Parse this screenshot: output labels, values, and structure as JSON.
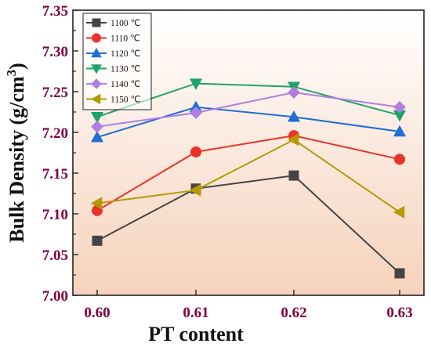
{
  "chart_data": {
    "type": "line",
    "title": "",
    "xlabel": "PT content",
    "ylabel": "Bulk Density (g/cm",
    "ylabel_sup": "3",
    "ylabel_close": ")",
    "categories": [
      "0.60",
      "0.61",
      "0.62",
      "0.63"
    ],
    "x": [
      0.6,
      0.61,
      0.62,
      0.63
    ],
    "ylim": [
      7.0,
      7.35
    ],
    "yticks": [
      "7.00",
      "7.05",
      "7.10",
      "7.15",
      "7.20",
      "7.25",
      "7.30",
      "7.35"
    ],
    "legend_position": "top-left",
    "grid": false,
    "background_gradient": [
      "#ffffff",
      "#f6d2bb"
    ],
    "series": [
      {
        "name": "1100 ℃",
        "color": "#444444",
        "marker": "square",
        "values": [
          7.067,
          7.131,
          7.147,
          7.027
        ]
      },
      {
        "name": "1110 ℃",
        "color": "#e8332a",
        "marker": "circle",
        "values": [
          7.104,
          7.176,
          7.196,
          7.167
        ]
      },
      {
        "name": "1120 ℃",
        "color": "#1f6fd6",
        "marker": "triangle-up",
        "values": [
          7.194,
          7.231,
          7.219,
          7.201
        ]
      },
      {
        "name": "1130 ℃",
        "color": "#1fa36a",
        "marker": "triangle-down",
        "values": [
          7.219,
          7.26,
          7.256,
          7.221
        ]
      },
      {
        "name": "1140 ℃",
        "color": "#b17ee0",
        "marker": "diamond",
        "values": [
          7.207,
          7.224,
          7.249,
          7.231
        ]
      },
      {
        "name": "1150 ℃",
        "color": "#b59a05",
        "marker": "triangle-left",
        "values": [
          7.113,
          7.129,
          7.191,
          7.102
        ]
      }
    ]
  }
}
